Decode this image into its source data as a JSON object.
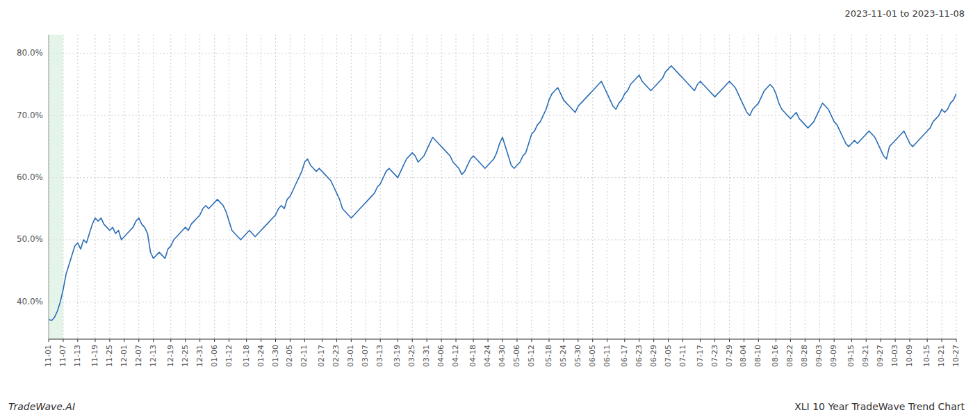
{
  "chart_data": {
    "type": "line",
    "title": "XLI 10 Year TradeWave Trend Chart",
    "subtitle": "2023-11-01 to 2023-11-08",
    "annotations": [
      "TradeWave.AI"
    ],
    "color": "#2a6db5",
    "grid": true,
    "highlight": {
      "from": "11-01",
      "to": "11-07",
      "color": "#d4edda"
    },
    "ylim": [
      34,
      83
    ],
    "yticks": [
      {
        "value": 40.0,
        "label": "40.0%"
      },
      {
        "value": 50.0,
        "label": "50.0%"
      },
      {
        "value": 60.0,
        "label": "60.0%"
      },
      {
        "value": 70.0,
        "label": "70.0%"
      },
      {
        "value": 80.0,
        "label": "80.0%"
      }
    ],
    "categories": [
      "11-01",
      null,
      null,
      null,
      null,
      "11-07",
      null,
      null,
      null,
      null,
      "11-13",
      null,
      null,
      null,
      null,
      null,
      "11-19",
      null,
      null,
      null,
      null,
      "11-25",
      null,
      null,
      null,
      null,
      "12-01",
      null,
      null,
      null,
      null,
      "12-07",
      null,
      null,
      null,
      null,
      "12-13",
      null,
      null,
      null,
      null,
      null,
      "12-19",
      null,
      null,
      null,
      null,
      "12-25",
      null,
      null,
      null,
      null,
      "12-31",
      null,
      null,
      null,
      null,
      "01-06",
      null,
      null,
      null,
      null,
      "01-12",
      null,
      null,
      null,
      null,
      null,
      "01-18",
      null,
      null,
      null,
      null,
      "01-24",
      null,
      null,
      null,
      null,
      "01-30",
      null,
      null,
      null,
      null,
      "02-05",
      null,
      null,
      null,
      null,
      "02-11",
      null,
      null,
      null,
      null,
      null,
      "02-17",
      null,
      null,
      null,
      null,
      "02-23",
      null,
      null,
      null,
      null,
      "03-01",
      null,
      null,
      null,
      null,
      "03-07",
      null,
      null,
      null,
      null,
      "03-13",
      null,
      null,
      null,
      null,
      null,
      "03-19",
      null,
      null,
      null,
      null,
      "03-25",
      null,
      null,
      null,
      null,
      "03-31",
      null,
      null,
      null,
      null,
      "04-06",
      null,
      null,
      null,
      null,
      "04-12",
      null,
      null,
      null,
      null,
      null,
      "04-18",
      null,
      null,
      null,
      null,
      "04-24",
      null,
      null,
      null,
      null,
      "04-30",
      null,
      null,
      null,
      null,
      "05-06",
      null,
      null,
      null,
      null,
      "05-12",
      null,
      null,
      null,
      null,
      null,
      "05-18",
      null,
      null,
      null,
      null,
      "05-24",
      null,
      null,
      null,
      null,
      "05-30",
      null,
      null,
      null,
      null,
      "06-05",
      null,
      null,
      null,
      null,
      "06-11",
      null,
      null,
      null,
      null,
      null,
      "06-17",
      null,
      null,
      null,
      null,
      "06-23",
      null,
      null,
      null,
      null,
      "06-29",
      null,
      null,
      null,
      null,
      "07-05",
      null,
      null,
      null,
      null,
      "07-11",
      null,
      null,
      null,
      null,
      null,
      "07-17",
      null,
      null,
      null,
      null,
      "07-23",
      null,
      null,
      null,
      null,
      "07-29",
      null,
      null,
      null,
      null,
      "08-04",
      null,
      null,
      null,
      null,
      "08-10",
      null,
      null,
      null,
      null,
      null,
      "08-16",
      null,
      null,
      null,
      null,
      "08-22",
      null,
      null,
      null,
      null,
      "08-28",
      null,
      null,
      null,
      null,
      "09-03",
      null,
      null,
      null,
      null,
      "09-09",
      null,
      null,
      null,
      null,
      null,
      "09-15",
      null,
      null,
      null,
      null,
      "09-21",
      null,
      null,
      null,
      null,
      "09-27",
      null,
      null,
      null,
      null,
      "10-03",
      null,
      null,
      null,
      null,
      "10-09",
      null,
      null,
      null,
      null,
      null,
      "10-15",
      null,
      null,
      null,
      null,
      "10-21",
      null,
      null,
      null,
      null,
      "10-27"
    ],
    "values": [
      37.2,
      37.0,
      37.5,
      38.5,
      40.0,
      42.0,
      44.5,
      46.0,
      47.5,
      49.0,
      49.5,
      48.5,
      50.0,
      49.5,
      51.0,
      52.5,
      53.5,
      53.0,
      53.5,
      52.5,
      52.0,
      51.5,
      52.0,
      51.0,
      51.5,
      50.0,
      50.5,
      51.0,
      51.5,
      52.0,
      53.0,
      53.5,
      52.5,
      52.0,
      51.0,
      48.0,
      47.0,
      47.5,
      48.0,
      47.5,
      47.0,
      48.5,
      49.0,
      50.0,
      50.5,
      51.0,
      51.5,
      52.0,
      51.5,
      52.5,
      53.0,
      53.5,
      54.0,
      55.0,
      55.5,
      55.0,
      55.5,
      56.0,
      56.5,
      56.0,
      55.5,
      54.5,
      53.0,
      51.5,
      51.0,
      50.5,
      50.0,
      50.5,
      51.0,
      51.5,
      51.0,
      50.5,
      51.0,
      51.5,
      52.0,
      52.5,
      53.0,
      53.5,
      54.0,
      55.0,
      55.5,
      55.0,
      56.5,
      57.0,
      58.0,
      59.0,
      60.0,
      61.0,
      62.5,
      63.0,
      62.0,
      61.5,
      61.0,
      61.5,
      61.0,
      60.5,
      60.0,
      59.5,
      58.5,
      57.5,
      56.5,
      55.0,
      54.5,
      54.0,
      53.5,
      54.0,
      54.5,
      55.0,
      55.5,
      56.0,
      56.5,
      57.0,
      57.5,
      58.5,
      59.0,
      60.0,
      61.0,
      61.5,
      61.0,
      60.5,
      60.0,
      61.0,
      62.0,
      63.0,
      63.5,
      64.0,
      63.5,
      62.5,
      63.0,
      63.5,
      64.5,
      65.5,
      66.5,
      66.0,
      65.5,
      65.0,
      64.5,
      64.0,
      63.5,
      62.5,
      62.0,
      61.5,
      60.5,
      61.0,
      62.0,
      63.0,
      63.5,
      63.0,
      62.5,
      62.0,
      61.5,
      62.0,
      62.5,
      63.0,
      64.0,
      65.5,
      66.5,
      65.0,
      63.5,
      62.0,
      61.5,
      62.0,
      62.5,
      63.5,
      64.0,
      65.5,
      67.0,
      67.5,
      68.5,
      69.0,
      70.0,
      71.0,
      72.5,
      73.5,
      74.0,
      74.5,
      73.5,
      72.5,
      72.0,
      71.5,
      71.0,
      70.5,
      71.5,
      72.0,
      72.5,
      73.0,
      73.5,
      74.0,
      74.5,
      75.0,
      75.5,
      74.5,
      73.5,
      72.5,
      71.5,
      71.0,
      72.0,
      72.5,
      73.5,
      74.0,
      75.0,
      75.5,
      76.0,
      76.5,
      75.5,
      75.0,
      74.5,
      74.0,
      74.5,
      75.0,
      75.5,
      76.0,
      77.0,
      77.5,
      78.0,
      77.5,
      77.0,
      76.5,
      76.0,
      75.5,
      75.0,
      74.5,
      74.0,
      75.0,
      75.5,
      75.0,
      74.5,
      74.0,
      73.5,
      73.0,
      73.5,
      74.0,
      74.5,
      75.0,
      75.5,
      75.0,
      74.5,
      73.5,
      72.5,
      71.5,
      70.5,
      70.0,
      71.0,
      71.5,
      72.0,
      73.0,
      74.0,
      74.5,
      75.0,
      74.5,
      73.5,
      72.0,
      71.0,
      70.5,
      70.0,
      69.5,
      70.0,
      70.5,
      69.5,
      69.0,
      68.5,
      68.0,
      68.5,
      69.0,
      70.0,
      71.0,
      72.0,
      71.5,
      71.0,
      70.0,
      69.0,
      68.5,
      67.5,
      66.5,
      65.5,
      65.0,
      65.5,
      66.0,
      65.5,
      66.0,
      66.5,
      67.0,
      67.5,
      67.0,
      66.5,
      65.5,
      64.5,
      63.5,
      63.0,
      65.0,
      65.5,
      66.0,
      66.5,
      67.0,
      67.5,
      66.5,
      65.5,
      65.0,
      65.5,
      66.0,
      66.5,
      67.0,
      67.5,
      68.0,
      69.0,
      69.5,
      70.0,
      71.0,
      70.5,
      71.0,
      72.0,
      72.5,
      73.5
    ]
  }
}
